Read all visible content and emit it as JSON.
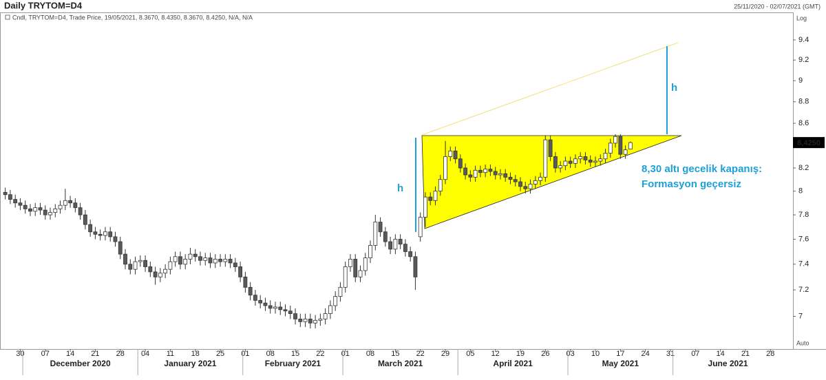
{
  "chart_data": {
    "type": "candlestick",
    "title": "Daily TRYTOM=D4",
    "date_range": "25/11/2020 - 02/07/2021 (GMT)",
    "legend_text": "Cndl, TRYTOM=D4, Trade Price, 19/05/2021, 8.3670, 8.4350, 8.3670, 8.4250, N/A, N/A",
    "scale_label": "Log",
    "auto_label": "Auto",
    "log_scale": true,
    "up_color": "#ffffff",
    "down_color": "#5a5a5a",
    "xlim": [
      "2020-11-25",
      "2021-07-02"
    ],
    "ylim": [
      6.76,
      9.68
    ],
    "yticks": [
      7,
      7.2,
      7.4,
      7.6,
      7.8,
      8,
      8.2,
      8.4,
      8.6,
      8.8,
      9,
      9.2,
      9.4
    ],
    "last_price": {
      "value": 8.425,
      "label": "8,4250"
    },
    "xticks": [
      {
        "value": "2020-11-30",
        "label": "30"
      },
      {
        "value": "2020-12-07",
        "label": "07"
      },
      {
        "value": "2020-12-14",
        "label": "14"
      },
      {
        "value": "2020-12-21",
        "label": "21"
      },
      {
        "value": "2020-12-28",
        "label": "28"
      },
      {
        "value": "2021-01-04",
        "label": "04"
      },
      {
        "value": "2021-01-11",
        "label": "11"
      },
      {
        "value": "2021-01-18",
        "label": "18"
      },
      {
        "value": "2021-01-25",
        "label": "25"
      },
      {
        "value": "2021-02-01",
        "label": "01"
      },
      {
        "value": "2021-02-08",
        "label": "08"
      },
      {
        "value": "2021-02-15",
        "label": "15"
      },
      {
        "value": "2021-02-22",
        "label": "22"
      },
      {
        "value": "2021-03-01",
        "label": "01"
      },
      {
        "value": "2021-03-08",
        "label": "08"
      },
      {
        "value": "2021-03-15",
        "label": "15"
      },
      {
        "value": "2021-03-22",
        "label": "22"
      },
      {
        "value": "2021-03-29",
        "label": "29"
      },
      {
        "value": "2021-04-05",
        "label": "05"
      },
      {
        "value": "2021-04-12",
        "label": "12"
      },
      {
        "value": "2021-04-19",
        "label": "19"
      },
      {
        "value": "2021-04-26",
        "label": "26"
      },
      {
        "value": "2021-05-03",
        "label": "03"
      },
      {
        "value": "2021-05-10",
        "label": "10"
      },
      {
        "value": "2021-05-17",
        "label": "17"
      },
      {
        "value": "2021-05-24",
        "label": "24"
      },
      {
        "value": "2021-05-31",
        "label": "31"
      },
      {
        "value": "2021-06-07",
        "label": "07"
      },
      {
        "value": "2021-06-14",
        "label": "14"
      },
      {
        "value": "2021-06-21",
        "label": "21"
      },
      {
        "value": "2021-06-28",
        "label": "28"
      }
    ],
    "month_labels": [
      {
        "value": "2020-12",
        "label": "December 2020"
      },
      {
        "value": "2021-01",
        "label": "January 2021"
      },
      {
        "value": "2021-02",
        "label": "February 2021"
      },
      {
        "value": "2021-03",
        "label": "March 2021"
      },
      {
        "value": "2021-04",
        "label": "April 2021"
      },
      {
        "value": "2021-05",
        "label": "May 2021"
      },
      {
        "value": "2021-06",
        "label": "June 2021"
      }
    ],
    "annotations": [
      "h",
      "h",
      "8,30 altı gecelik kapanış:",
      "Formasyon geçersiz"
    ],
    "x": [
      "2020-11-25",
      "2020-11-26",
      "2020-11-27",
      "2020-11-30",
      "2020-12-01",
      "2020-12-02",
      "2020-12-03",
      "2020-12-04",
      "2020-12-07",
      "2020-12-08",
      "2020-12-09",
      "2020-12-10",
      "2020-12-11",
      "2020-12-14",
      "2020-12-15",
      "2020-12-16",
      "2020-12-17",
      "2020-12-18",
      "2020-12-21",
      "2020-12-22",
      "2020-12-23",
      "2020-12-24",
      "2020-12-25",
      "2020-12-28",
      "2020-12-29",
      "2020-12-30",
      "2020-12-31",
      "2021-01-01",
      "2021-01-04",
      "2021-01-05",
      "2021-01-06",
      "2021-01-07",
      "2021-01-08",
      "2021-01-11",
      "2021-01-12",
      "2021-01-13",
      "2021-01-14",
      "2021-01-15",
      "2021-01-18",
      "2021-01-19",
      "2021-01-20",
      "2021-01-21",
      "2021-01-22",
      "2021-01-25",
      "2021-01-26",
      "2021-01-27",
      "2021-01-28",
      "2021-01-29",
      "2021-02-01",
      "2021-02-02",
      "2021-02-03",
      "2021-02-04",
      "2021-02-05",
      "2021-02-08",
      "2021-02-09",
      "2021-02-10",
      "2021-02-11",
      "2021-02-12",
      "2021-02-15",
      "2021-02-16",
      "2021-02-17",
      "2021-02-18",
      "2021-02-19",
      "2021-02-22",
      "2021-02-23",
      "2021-02-24",
      "2021-02-25",
      "2021-02-26",
      "2021-03-01",
      "2021-03-02",
      "2021-03-03",
      "2021-03-04",
      "2021-03-05",
      "2021-03-08",
      "2021-03-09",
      "2021-03-10",
      "2021-03-11",
      "2021-03-12",
      "2021-03-15",
      "2021-03-16",
      "2021-03-17",
      "2021-03-18",
      "2021-03-19",
      "2021-03-22",
      "2021-03-23",
      "2021-03-24",
      "2021-03-25",
      "2021-03-26",
      "2021-03-29",
      "2021-03-30",
      "2021-03-31",
      "2021-04-01",
      "2021-04-02",
      "2021-04-05",
      "2021-04-06",
      "2021-04-07",
      "2021-04-08",
      "2021-04-09",
      "2021-04-12",
      "2021-04-13",
      "2021-04-14",
      "2021-04-15",
      "2021-04-16",
      "2021-04-19",
      "2021-04-20",
      "2021-04-21",
      "2021-04-22",
      "2021-04-23",
      "2021-04-26",
      "2021-04-27",
      "2021-04-28",
      "2021-04-29",
      "2021-04-30",
      "2021-05-03",
      "2021-05-04",
      "2021-05-05",
      "2021-05-06",
      "2021-05-07",
      "2021-05-10",
      "2021-05-11",
      "2021-05-12",
      "2021-05-13",
      "2021-05-14",
      "2021-05-17",
      "2021-05-18",
      "2021-05-19"
    ],
    "open": [
      7.99,
      7.97,
      7.93,
      7.9,
      7.88,
      7.85,
      7.83,
      7.86,
      7.84,
      7.8,
      7.82,
      7.85,
      7.88,
      7.92,
      7.9,
      7.86,
      7.8,
      7.72,
      7.66,
      7.64,
      7.63,
      7.66,
      7.62,
      7.58,
      7.48,
      7.4,
      7.36,
      7.42,
      7.43,
      7.38,
      7.34,
      7.3,
      7.33,
      7.36,
      7.42,
      7.46,
      7.4,
      7.44,
      7.48,
      7.46,
      7.43,
      7.45,
      7.41,
      7.44,
      7.42,
      7.44,
      7.41,
      7.38,
      7.3,
      7.22,
      7.16,
      7.12,
      7.1,
      7.08,
      7.06,
      7.07,
      7.05,
      7.04,
      7.02,
      6.98,
      6.96,
      6.98,
      6.95,
      6.97,
      6.98,
      7.02,
      7.08,
      7.15,
      7.22,
      7.38,
      7.44,
      7.3,
      7.35,
      7.45,
      7.55,
      7.74,
      7.66,
      7.58,
      7.52,
      7.6,
      7.56,
      7.5,
      7.46,
      7.62,
      7.78,
      7.95,
      7.92,
      8.0,
      8.1,
      8.3,
      8.35,
      8.28,
      8.2,
      8.14,
      8.12,
      8.18,
      8.16,
      8.19,
      8.17,
      8.14,
      8.15,
      8.12,
      8.1,
      8.08,
      8.04,
      8.02,
      8.06,
      8.09,
      8.12,
      8.45,
      8.3,
      8.2,
      8.22,
      8.26,
      8.24,
      8.28,
      8.3,
      8.27,
      8.25,
      8.26,
      8.28,
      8.33,
      8.42,
      8.48,
      8.32,
      8.367
    ],
    "high": [
      8.03,
      8.01,
      7.97,
      7.94,
      7.92,
      7.89,
      7.9,
      7.9,
      7.88,
      7.86,
      7.89,
      7.92,
      8.02,
      7.96,
      7.94,
      7.9,
      7.84,
      7.76,
      7.7,
      7.68,
      7.7,
      7.7,
      7.66,
      7.62,
      7.52,
      7.44,
      7.46,
      7.47,
      7.47,
      7.42,
      7.38,
      7.37,
      7.4,
      7.46,
      7.5,
      7.5,
      7.48,
      7.53,
      7.52,
      7.5,
      7.49,
      7.49,
      7.48,
      7.48,
      7.48,
      7.48,
      7.45,
      7.42,
      7.34,
      7.26,
      7.2,
      7.16,
      7.14,
      7.12,
      7.11,
      7.11,
      7.09,
      7.08,
      7.06,
      7.02,
      7.02,
      7.02,
      7.01,
      7.02,
      7.06,
      7.12,
      7.19,
      7.26,
      7.42,
      7.48,
      7.48,
      7.39,
      7.49,
      7.59,
      7.8,
      7.78,
      7.7,
      7.62,
      7.64,
      7.64,
      7.6,
      7.54,
      7.5,
      7.82,
      7.99,
      7.99,
      8.04,
      8.14,
      8.44,
      8.39,
      8.39,
      8.32,
      8.24,
      8.18,
      8.22,
      8.22,
      8.23,
      8.23,
      8.21,
      8.19,
      8.19,
      8.16,
      8.14,
      8.12,
      8.08,
      8.1,
      8.13,
      8.16,
      8.49,
      8.49,
      8.34,
      8.26,
      8.3,
      8.3,
      8.32,
      8.34,
      8.34,
      8.31,
      8.3,
      8.32,
      8.37,
      8.46,
      8.5,
      8.5,
      8.4,
      8.435
    ],
    "low": [
      7.93,
      7.89,
      7.86,
      7.84,
      7.81,
      7.79,
      7.79,
      7.8,
      7.76,
      7.76,
      7.78,
      7.81,
      7.84,
      7.86,
      7.82,
      7.76,
      7.68,
      7.62,
      7.6,
      7.59,
      7.59,
      7.58,
      7.54,
      7.44,
      7.36,
      7.32,
      7.32,
      7.38,
      7.34,
      7.3,
      7.24,
      7.26,
      7.29,
      7.32,
      7.38,
      7.36,
      7.36,
      7.4,
      7.42,
      7.39,
      7.39,
      7.37,
      7.37,
      7.38,
      7.38,
      7.37,
      7.34,
      7.26,
      7.18,
      7.12,
      7.08,
      7.06,
      7.04,
      7.02,
      7.02,
      7.01,
      7.0,
      6.98,
      6.94,
      6.92,
      6.92,
      6.91,
      6.91,
      6.93,
      6.94,
      6.98,
      7.04,
      7.11,
      7.18,
      7.34,
      7.26,
      7.26,
      7.31,
      7.41,
      7.51,
      7.62,
      7.54,
      7.48,
      7.48,
      7.52,
      7.46,
      7.42,
      7.2,
      7.58,
      7.7,
      7.88,
      7.88,
      7.96,
      8.06,
      8.26,
      8.24,
      8.16,
      8.1,
      8.08,
      8.08,
      8.12,
      8.12,
      8.13,
      8.1,
      8.1,
      8.08,
      8.06,
      8.04,
      8.0,
      7.98,
      7.98,
      8.02,
      8.05,
      8.08,
      8.26,
      8.16,
      8.16,
      8.18,
      8.2,
      8.2,
      8.24,
      8.23,
      8.21,
      8.21,
      8.22,
      8.24,
      8.29,
      8.38,
      8.28,
      8.28,
      8.367
    ],
    "close": [
      7.97,
      7.93,
      7.9,
      7.88,
      7.85,
      7.83,
      7.86,
      7.84,
      7.8,
      7.82,
      7.85,
      7.88,
      7.92,
      7.9,
      7.86,
      7.8,
      7.72,
      7.66,
      7.64,
      7.63,
      7.66,
      7.62,
      7.58,
      7.48,
      7.4,
      7.36,
      7.42,
      7.43,
      7.38,
      7.34,
      7.3,
      7.33,
      7.36,
      7.42,
      7.46,
      7.4,
      7.44,
      7.48,
      7.46,
      7.43,
      7.45,
      7.41,
      7.44,
      7.42,
      7.44,
      7.41,
      7.38,
      7.3,
      7.22,
      7.16,
      7.12,
      7.1,
      7.08,
      7.06,
      7.07,
      7.05,
      7.04,
      7.02,
      6.98,
      6.96,
      6.98,
      6.95,
      6.97,
      6.98,
      7.02,
      7.08,
      7.15,
      7.22,
      7.38,
      7.44,
      7.3,
      7.35,
      7.45,
      7.55,
      7.74,
      7.66,
      7.58,
      7.52,
      7.6,
      7.56,
      7.5,
      7.46,
      7.3,
      7.78,
      7.95,
      7.92,
      8.0,
      8.1,
      8.3,
      8.35,
      8.28,
      8.2,
      8.14,
      8.12,
      8.18,
      8.16,
      8.19,
      8.17,
      8.14,
      8.15,
      8.12,
      8.1,
      8.08,
      8.04,
      8.02,
      8.06,
      8.09,
      8.12,
      8.45,
      8.3,
      8.2,
      8.22,
      8.26,
      8.24,
      8.28,
      8.3,
      8.27,
      8.25,
      8.26,
      8.28,
      8.33,
      8.42,
      8.48,
      8.32,
      8.36,
      8.425
    ]
  }
}
